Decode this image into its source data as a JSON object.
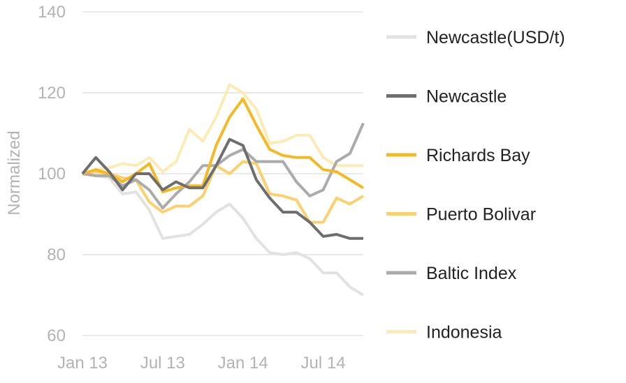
{
  "chart_data": {
    "type": "line",
    "title": "",
    "xlabel": "",
    "ylabel": "Normalized",
    "ylim": [
      60,
      140
    ],
    "yticks": [
      "60",
      "80",
      "100",
      "120",
      "140"
    ],
    "xtick_labels": [
      "Jan 13",
      "Jul 13",
      "Jan 14",
      "Jul 14"
    ],
    "xlim_months": [
      0,
      21
    ],
    "grid": "horizontal",
    "legend_position": "right",
    "x": [
      "Jan 13",
      "Feb 13",
      "Mar 13",
      "Apr 13",
      "May 13",
      "Jun 13",
      "Jul 13",
      "Aug 13",
      "Sep 13",
      "Oct 13",
      "Nov 13",
      "Dec 13",
      "Jan 14",
      "Feb 14",
      "Mar 14",
      "Apr 14",
      "May 14",
      "Jun 14",
      "Jul 14",
      "Aug 14",
      "Sep 14",
      "Oct 14"
    ],
    "series": [
      {
        "name": "Newcastle(USD/t)",
        "color": "#e2e2e2",
        "values": [
          100,
          99.5,
          99,
          95,
          95.5,
          91,
          84,
          84.5,
          85,
          87.5,
          90.5,
          92.5,
          89,
          84,
          80.5,
          80,
          80.5,
          79,
          75.5,
          75.5,
          72,
          70
        ]
      },
      {
        "name": "Newcastle",
        "color": "#6e6e6e",
        "values": [
          100,
          104,
          100.5,
          96,
          100,
          100,
          96,
          98,
          96.5,
          96.5,
          102,
          108.5,
          107,
          98.5,
          94,
          90.5,
          90.5,
          88,
          84.5,
          85,
          84,
          84
        ]
      },
      {
        "name": "Richards Bay",
        "color": "#f4b927",
        "values": [
          100,
          101,
          100,
          98,
          100,
          102.5,
          95.5,
          96.5,
          97,
          97,
          107,
          114,
          118.5,
          112,
          106,
          104.5,
          104,
          104,
          101,
          100.5,
          98.5,
          96.5
        ]
      },
      {
        "name": "Puerto Bolivar",
        "color": "#fbd170",
        "values": [
          100,
          100.5,
          100,
          99,
          98.5,
          93,
          90.5,
          92,
          92,
          94.5,
          102,
          100,
          103,
          102.5,
          95,
          94.5,
          93.5,
          88,
          88,
          94,
          92.5,
          94.5
        ]
      },
      {
        "name": "Baltic Index",
        "color": "#ababab",
        "values": [
          100,
          99.5,
          99.5,
          97,
          98.5,
          96,
          91.5,
          95,
          98,
          102,
          102,
          104.5,
          106,
          103,
          103,
          103,
          98,
          94.5,
          96,
          103,
          105,
          112.5
        ]
      },
      {
        "name": "Indonesia",
        "color": "#fdebb6",
        "values": [
          100,
          101,
          101.5,
          102.5,
          102,
          104,
          100.5,
          103,
          111,
          108,
          114,
          122,
          120,
          116,
          107.5,
          108,
          109.5,
          109.5,
          104,
          102,
          102,
          102
        ]
      }
    ]
  }
}
